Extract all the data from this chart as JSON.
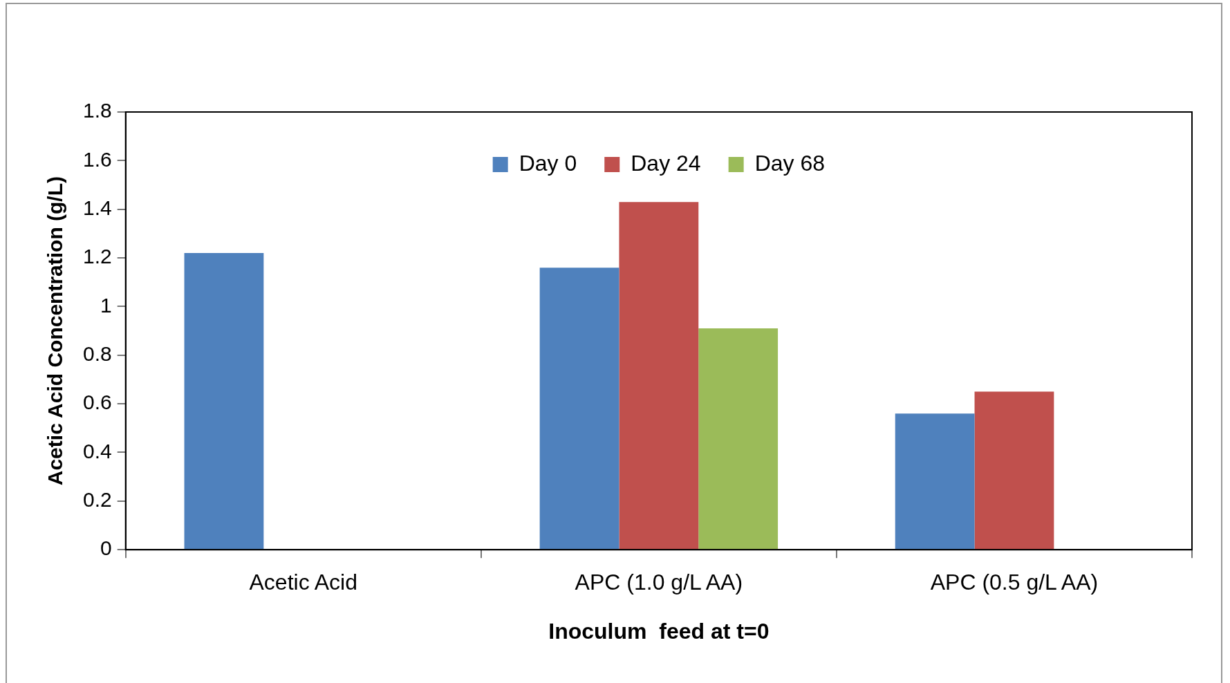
{
  "chart_data": {
    "type": "bar",
    "xlabel": "Inoculum  feed at t=0",
    "ylabel": "Acetic Acid Concentration (g/L)",
    "categories": [
      "Acetic Acid",
      "APC (1.0 g/L AA)",
      "APC (0.5 g/L AA)"
    ],
    "series": [
      {
        "name": "Day 0",
        "color": "#4f81bd",
        "values": [
          1.22,
          1.16,
          0.56
        ]
      },
      {
        "name": "Day 24",
        "color": "#c0504d",
        "values": [
          null,
          1.43,
          0.65
        ]
      },
      {
        "name": "Day 68",
        "color": "#9bbb59",
        "values": [
          null,
          0.91,
          null
        ]
      }
    ],
    "ylim": [
      0,
      1.8
    ],
    "yticks": [
      0,
      {
        "value": 0.2,
        "label": "0.2"
      },
      {
        "value": 0.4,
        "label": "0.4"
      },
      {
        "value": 0.6,
        "label": "0.6"
      },
      {
        "value": 0.8,
        "label": "0.8"
      },
      1,
      {
        "value": 1.2,
        "label": "1.2"
      },
      {
        "value": 1.4,
        "label": "1.4"
      },
      {
        "value": 1.6,
        "label": "1.6"
      },
      {
        "value": 1.8,
        "label": "1.8"
      }
    ],
    "grid": false,
    "legend": "top"
  }
}
